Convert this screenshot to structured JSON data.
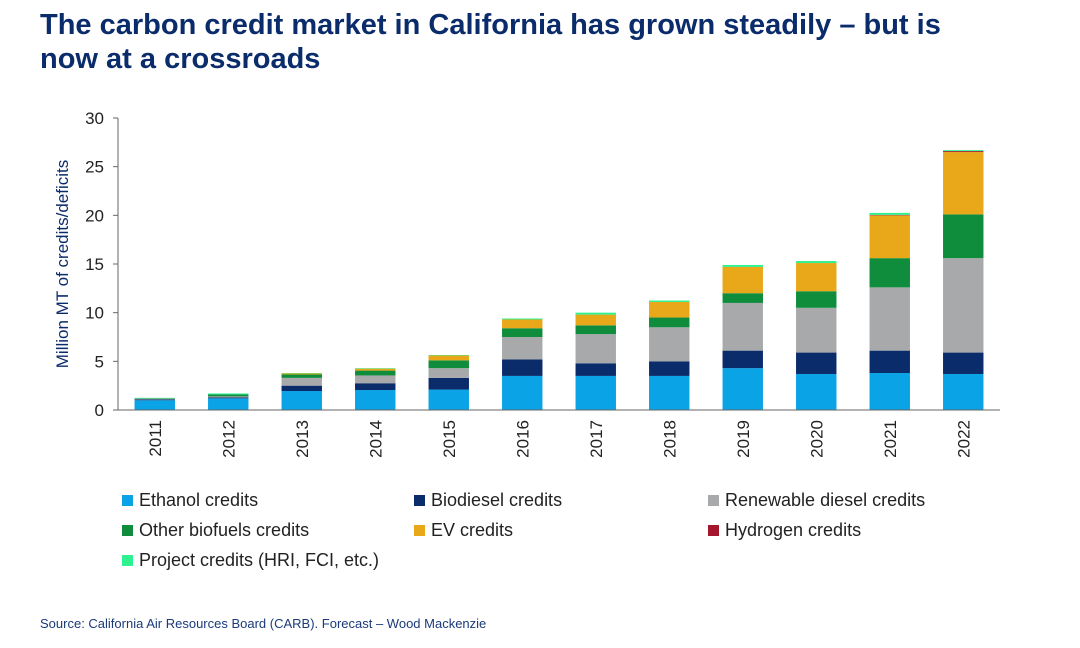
{
  "title": "The carbon credit market in California has grown steadily – but is now at a crossroads",
  "source": "Source: California Air Resources Board (CARB). Forecast – Wood Mackenzie",
  "chart_data": {
    "type": "bar",
    "stacked": true,
    "ylabel": "Million MT of credits/deficits",
    "xlabel": "",
    "ylim": [
      0,
      30
    ],
    "yticks": [
      0,
      5,
      10,
      15,
      20,
      25,
      30
    ],
    "grid": false,
    "legend_position": "bottom",
    "categories": [
      "2011",
      "2012",
      "2013",
      "2014",
      "2015",
      "2016",
      "2017",
      "2018",
      "2019",
      "2020",
      "2021",
      "2022"
    ],
    "series": [
      {
        "name": "Ethanol credits",
        "color": "#0aa3e6",
        "values": [
          1.0,
          1.2,
          1.95,
          2.05,
          2.1,
          3.5,
          3.5,
          3.5,
          4.3,
          3.7,
          3.8,
          3.7
        ]
      },
      {
        "name": "Biodiesel credits",
        "color": "#0b2c6b",
        "values": [
          0.1,
          0.1,
          0.55,
          0.7,
          1.2,
          1.7,
          1.3,
          1.5,
          1.8,
          2.2,
          2.3,
          2.2
        ]
      },
      {
        "name": "Renewable diesel credits",
        "color": "#a7a9ab",
        "values": [
          0.05,
          0.1,
          0.8,
          0.8,
          1.0,
          2.3,
          3.0,
          3.5,
          4.9,
          4.6,
          6.5,
          9.7
        ]
      },
      {
        "name": "Other biofuels credits",
        "color": "#0f8c3c",
        "values": [
          0.05,
          0.2,
          0.35,
          0.5,
          0.8,
          0.9,
          0.9,
          1.0,
          1.0,
          1.7,
          3.0,
          4.5
        ]
      },
      {
        "name": "EV credits",
        "color": "#e9a81a",
        "values": [
          0.0,
          0.0,
          0.1,
          0.2,
          0.5,
          0.9,
          1.1,
          1.6,
          2.7,
          2.9,
          4.4,
          6.4
        ]
      },
      {
        "name": "Hydrogen credits",
        "color": "#a4162c",
        "values": [
          0.0,
          0.0,
          0.0,
          0.0,
          0.0,
          0.0,
          0.0,
          0.0,
          0.0,
          0.0,
          0.05,
          0.1
        ]
      },
      {
        "name": "Project credits (HRI, FCI, etc.)",
        "color": "#2ef18f",
        "values": [
          0.05,
          0.1,
          0.05,
          0.05,
          0.05,
          0.1,
          0.2,
          0.15,
          0.2,
          0.2,
          0.2,
          0.1
        ]
      }
    ]
  }
}
